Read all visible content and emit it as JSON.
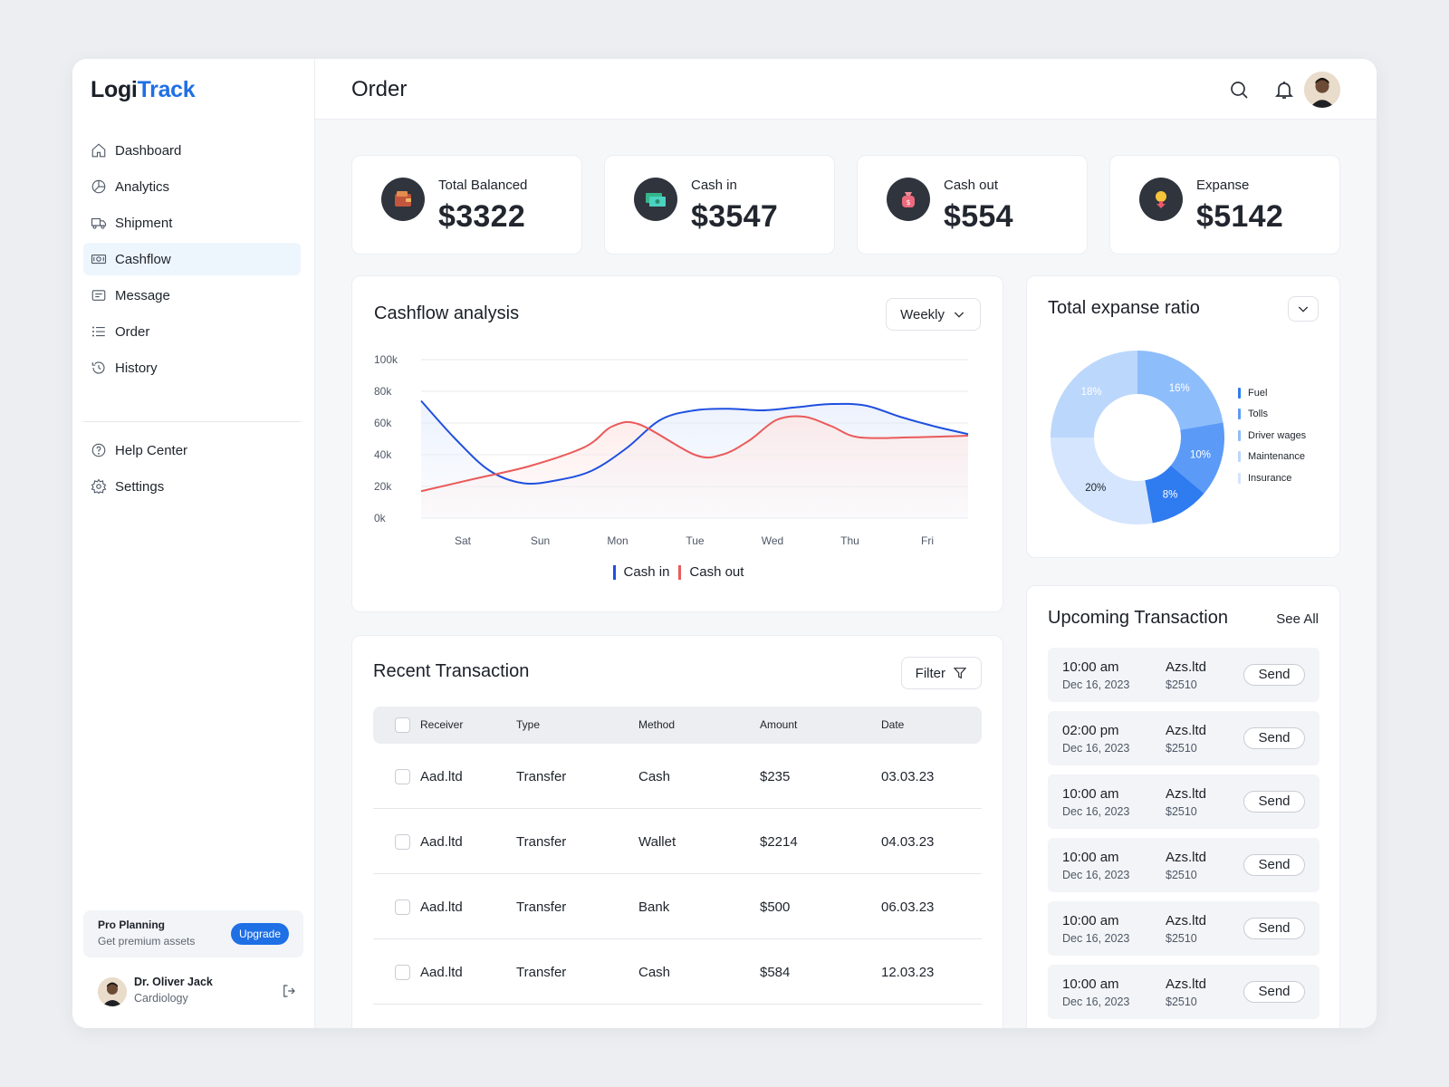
{
  "brand": {
    "part1": "Logi",
    "part2": "Track"
  },
  "header": {
    "title": "Order"
  },
  "sidebar": {
    "items": [
      {
        "label": "Dashboard",
        "icon": "home-icon"
      },
      {
        "label": "Analytics",
        "icon": "analytics-icon"
      },
      {
        "label": "Shipment",
        "icon": "truck-icon"
      },
      {
        "label": "Cashflow",
        "icon": "cash-icon",
        "active": true
      },
      {
        "label": "Message",
        "icon": "message-icon"
      },
      {
        "label": "Order",
        "icon": "list-icon"
      },
      {
        "label": "History",
        "icon": "history-icon"
      }
    ],
    "secondary": [
      {
        "label": "Help Center",
        "icon": "help-icon"
      },
      {
        "label": "Settings",
        "icon": "gear-icon"
      }
    ],
    "pro": {
      "title": "Pro Planning",
      "subtitle": "Get premium assets",
      "button": "Upgrade"
    },
    "user": {
      "name": "Dr. Oliver Jack",
      "role": "Cardiology"
    }
  },
  "stats": [
    {
      "label": "Total Balanced",
      "value": "$3322",
      "icon": "wallet-icon"
    },
    {
      "label": "Cash in",
      "value": "$3547",
      "icon": "money-icon"
    },
    {
      "label": "Cash out",
      "value": "$554",
      "icon": "money-bag-icon"
    },
    {
      "label": "Expanse",
      "value": "$5142",
      "icon": "expense-icon"
    }
  ],
  "cashflow": {
    "title": "Cashflow analysis",
    "period": "Weekly",
    "legend": {
      "cash_in": "Cash in",
      "cash_out": "Cash out"
    }
  },
  "chart_data": [
    {
      "type": "line",
      "title": "Cashflow analysis",
      "x": [
        "Sat",
        "Sun",
        "Mon",
        "Tue",
        "Wed",
        "Thu",
        "Fri"
      ],
      "y_ticks": [
        "100k",
        "80k",
        "60k",
        "40k",
        "20k",
        "0k"
      ],
      "ylim": [
        0,
        100000
      ],
      "grid": true,
      "legend_position": "bottom",
      "series": [
        {
          "name": "Cash in",
          "color": "#1f4fe0",
          "points": [
            [
              0,
              74000
            ],
            [
              0.5,
              50000
            ],
            [
              1,
              30000
            ],
            [
              1.5,
              22000
            ],
            [
              2,
              24000
            ],
            [
              2.5,
              30000
            ],
            [
              3,
              44000
            ],
            [
              3.5,
              62000
            ],
            [
              4,
              68000
            ],
            [
              4.5,
              69000
            ],
            [
              5,
              68000
            ],
            [
              5.5,
              70000
            ],
            [
              6,
              72000
            ],
            [
              6.5,
              71000
            ],
            [
              7,
              64000
            ],
            [
              7.5,
              58000
            ],
            [
              8,
              53000
            ]
          ]
        },
        {
          "name": "Cash out",
          "color": "#ea5a5a",
          "points": [
            [
              0,
              17000
            ],
            [
              1,
              25000
            ],
            [
              2,
              33000
            ],
            [
              3,
              45000
            ],
            [
              3.5,
              58000
            ],
            [
              4,
              59000
            ],
            [
              5,
              40000
            ],
            [
              5.5,
              40000
            ],
            [
              6,
              49000
            ],
            [
              6.5,
              62000
            ],
            [
              7,
              64000
            ],
            [
              7.5,
              58000
            ],
            [
              8,
              51000
            ],
            [
              9,
              51000
            ],
            [
              10,
              52000
            ]
          ]
        }
      ]
    },
    {
      "type": "pie",
      "title": "Total expanse ratio",
      "legend_position": "right",
      "categories": [
        "Fuel",
        "Tolls",
        "Driver wages",
        "Maintenance",
        "Insurance"
      ],
      "slices": [
        {
          "label": "16%",
          "value": 16,
          "color": "#8ebdfb"
        },
        {
          "label": "10%",
          "value": 10,
          "color": "#5b9af7"
        },
        {
          "label": "8%",
          "value": 8,
          "color": "#2f7bf0"
        },
        {
          "label": "20%",
          "value": 20,
          "color": "#d4e5fd"
        },
        {
          "label": "18%",
          "value": 18,
          "color": "#bcd7fc"
        }
      ],
      "legend_colors": [
        "#2f7bf0",
        "#5b9af7",
        "#8ebdfb",
        "#bcd7fc",
        "#d4e5fd"
      ]
    }
  ],
  "expense": {
    "title": "Total expanse ratio"
  },
  "transactions": {
    "title": "Recent Transaction",
    "filter_label": "Filter",
    "columns": [
      "Receiver",
      "Type",
      "Method",
      "Amount",
      "Date"
    ],
    "rows": [
      [
        "Aad.ltd",
        "Transfer",
        "Cash",
        "$235",
        "03.03.23"
      ],
      [
        "Aad.ltd",
        "Transfer",
        "Wallet",
        "$2214",
        "04.03.23"
      ],
      [
        "Aad.ltd",
        "Transfer",
        "Bank",
        "$500",
        "06.03.23"
      ],
      [
        "Aad.ltd",
        "Transfer",
        "Cash",
        "$584",
        "12.03.23"
      ]
    ]
  },
  "upcoming": {
    "title": "Upcoming Transaction",
    "see_all": "See All",
    "items": [
      {
        "time": "10:00 am",
        "date": "Dec 16, 2023",
        "name": "Azs.ltd",
        "amount": "$2510",
        "action": "Send"
      },
      {
        "time": "02:00 pm",
        "date": "Dec 16, 2023",
        "name": "Azs.ltd",
        "amount": "$2510",
        "action": "Send"
      },
      {
        "time": "10:00 am",
        "date": "Dec 16, 2023",
        "name": "Azs.ltd",
        "amount": "$2510",
        "action": "Send"
      },
      {
        "time": "10:00 am",
        "date": "Dec 16, 2023",
        "name": "Azs.ltd",
        "amount": "$2510",
        "action": "Send"
      },
      {
        "time": "10:00 am",
        "date": "Dec 16, 2023",
        "name": "Azs.ltd",
        "amount": "$2510",
        "action": "Send"
      },
      {
        "time": "10:00 am",
        "date": "Dec 16, 2023",
        "name": "Azs.ltd",
        "amount": "$2510",
        "action": "Send"
      }
    ]
  }
}
